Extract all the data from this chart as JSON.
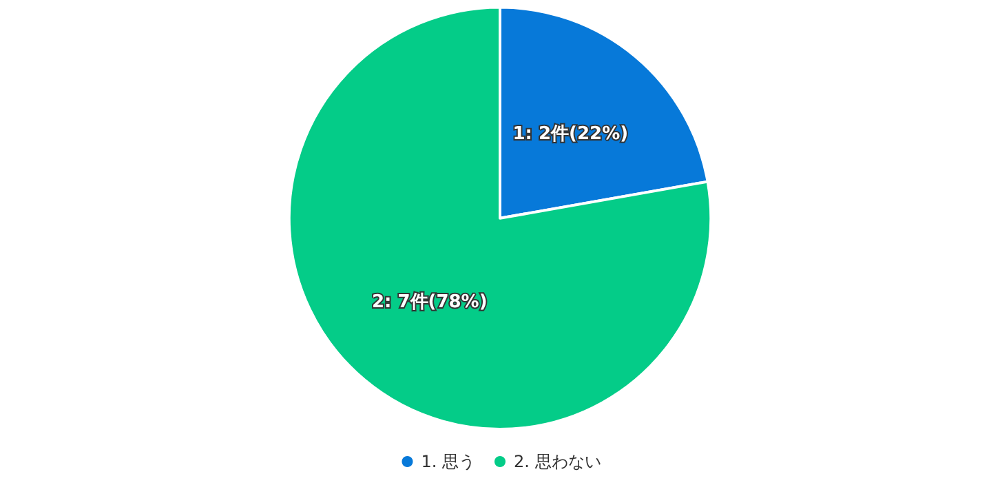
{
  "chart_data": {
    "type": "pie",
    "categories": [
      "1. 思う",
      "2. 思わない"
    ],
    "values": [
      2,
      7
    ],
    "colors": [
      "#0779d9",
      "#04cc88"
    ],
    "value_labels": [
      "1: 2件(22%)",
      "2: 7件(78%)"
    ],
    "legend": "bottom"
  }
}
